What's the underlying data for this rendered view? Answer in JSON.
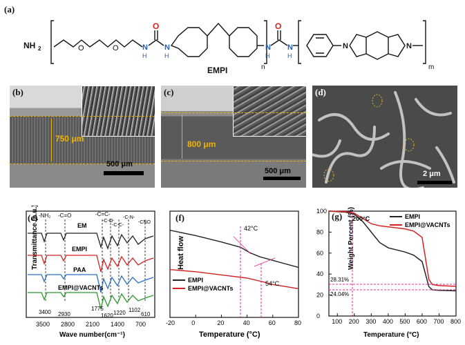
{
  "panels": {
    "a": {
      "letter": "(a)",
      "caption": "EMPI",
      "nh2": "NH",
      "nh2_sub": "2",
      "n_label": "n",
      "m_label": "m",
      "o_atoms": [
        "O",
        "O",
        "O",
        "O"
      ],
      "n_atoms": [
        "N",
        "N",
        "N",
        "N"
      ],
      "h_atoms": [
        "H",
        "H",
        "H",
        "H"
      ]
    },
    "b": {
      "letter": "(b)",
      "thickness": "750 μm",
      "scalebar": "500 μm"
    },
    "c": {
      "letter": "(c)",
      "thickness": "800 μm",
      "scalebar": "500 μm"
    },
    "d": {
      "letter": "(d)",
      "scalebar": "2 μm"
    },
    "e": {
      "letter": "(e)"
    },
    "f": {
      "letter": "(f)"
    },
    "g": {
      "letter": "(g)"
    }
  },
  "chart_data": [
    {
      "panel": "e",
      "type": "line",
      "xlabel": "Wave number(cm⁻¹)",
      "ylabel": "Transmittance (a.u.)",
      "xlim": [
        4000,
        500
      ],
      "x_ticks": [
        3500,
        2800,
        2100,
        1400,
        700
      ],
      "series": [
        {
          "name": "EM",
          "color": "#222222"
        },
        {
          "name": "EMPI",
          "color": "#d62020"
        },
        {
          "name": "PAA",
          "color": "#2a6fc4"
        },
        {
          "name": "EMPI@VACNTs",
          "color": "#2a9a2a"
        }
      ],
      "group_labels": [
        "-NH₂",
        "-C=O",
        "-C=C-",
        "-C-O-",
        "-C-C-",
        "-C-N-",
        "-CNO"
      ],
      "peak_labels": [
        "3400",
        "2930",
        "1775",
        "1620",
        "1220",
        "1102",
        "610"
      ]
    },
    {
      "panel": "f",
      "type": "line",
      "xlabel": "Temperature (°C)",
      "ylabel": "Heat flow",
      "xlim": [
        -20,
        80
      ],
      "x_ticks": [
        -20,
        0,
        20,
        40,
        60,
        80
      ],
      "series": [
        {
          "name": "EMPI",
          "color": "#222222",
          "x": [
            -20,
            0,
            20,
            35,
            42,
            50,
            65,
            80
          ],
          "y": [
            0.82,
            0.77,
            0.71,
            0.66,
            0.61,
            0.57,
            0.52,
            0.47
          ]
        },
        {
          "name": "EMPI@VACNTs",
          "color": "#d62020",
          "x": [
            -20,
            0,
            20,
            40,
            54,
            60,
            70,
            80
          ],
          "y": [
            0.45,
            0.43,
            0.4,
            0.37,
            0.33,
            0.31,
            0.29,
            0.27
          ]
        }
      ],
      "annotations": [
        "42°C",
        "54°C"
      ]
    },
    {
      "panel": "g",
      "type": "line",
      "xlabel": "Temperature (°C)",
      "ylabel": "Weight Percent (%)",
      "xlim": [
        50,
        800
      ],
      "ylim": [
        0,
        100
      ],
      "x_ticks": [
        100,
        200,
        300,
        400,
        500,
        600,
        700,
        800
      ],
      "y_ticks": [
        0,
        20,
        40,
        60,
        80,
        100
      ],
      "series": [
        {
          "name": "EMPI",
          "color": "#222222",
          "x": [
            50,
            150,
            200,
            250,
            300,
            350,
            400,
            450,
            500,
            550,
            600,
            620,
            640,
            660,
            700,
            800
          ],
          "y": [
            100,
            99,
            97,
            90,
            80,
            70,
            65,
            63,
            61,
            58,
            52,
            40,
            28,
            25,
            24.5,
            24
          ]
        },
        {
          "name": "EMPI@VACNTs",
          "color": "#d62020",
          "x": [
            50,
            150,
            200,
            250,
            300,
            350,
            400,
            450,
            500,
            550,
            600,
            620,
            640,
            660,
            700,
            800
          ],
          "y": [
            100,
            99.5,
            98,
            93,
            88,
            86,
            85,
            84,
            83,
            81,
            75,
            55,
            35,
            30,
            29,
            28.3
          ]
        }
      ],
      "annotations": [
        "200°C",
        "28.31%",
        "24.04%"
      ]
    }
  ]
}
